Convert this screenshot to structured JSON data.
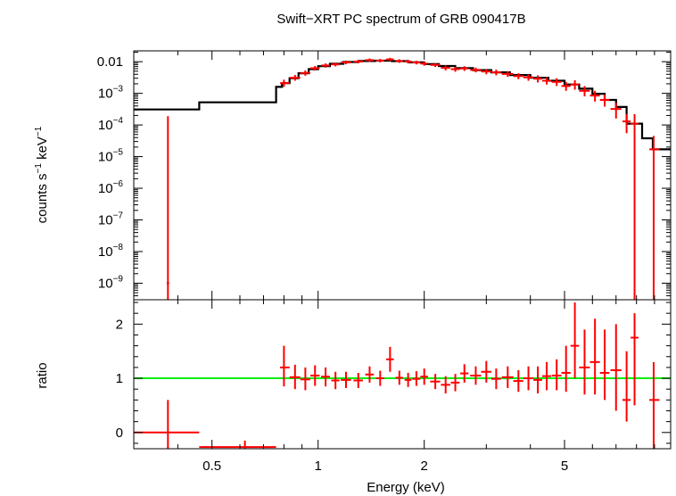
{
  "chart_data": {
    "type": "scatter",
    "title": "Swift−XRT PC spectrum of GRB 090417B",
    "xlabel": "Energy (keV)",
    "xscale": "log",
    "xlim": [
      0.3,
      10
    ],
    "x_ticks": [
      {
        "value": 0.5,
        "label": "0.5"
      },
      {
        "value": 1,
        "label": "1"
      },
      {
        "value": 2,
        "label": "2"
      },
      {
        "value": 5,
        "label": "5"
      }
    ],
    "top_panel": {
      "ylabel_parts": [
        "counts s",
        "−1",
        " keV",
        "−1"
      ],
      "yscale": "log",
      "ylim": [
        3e-10,
        0.022
      ],
      "y_ticks": [
        {
          "value": 0.01,
          "label": "0.01"
        },
        {
          "value": 0.001,
          "base": "10",
          "exp": "−3"
        },
        {
          "value": 0.0001,
          "base": "10",
          "exp": "−4"
        },
        {
          "value": 1e-05,
          "base": "10",
          "exp": "−5"
        },
        {
          "value": 1e-06,
          "base": "10",
          "exp": "−6"
        },
        {
          "value": 1e-07,
          "base": "10",
          "exp": "−7"
        },
        {
          "value": 1e-08,
          "base": "10",
          "exp": "−8"
        },
        {
          "value": 1e-09,
          "base": "10",
          "exp": "−9"
        }
      ],
      "model_color": "#000000",
      "data_color": "#ff0000",
      "model_steps": [
        [
          0.3,
          0.46,
          0.00031
        ],
        [
          0.46,
          0.76,
          0.00052
        ],
        [
          0.76,
          0.79,
          0.0016
        ],
        [
          0.79,
          0.83,
          0.0021
        ],
        [
          0.83,
          0.88,
          0.003
        ],
        [
          0.88,
          0.94,
          0.0043
        ],
        [
          0.94,
          1.0,
          0.0058
        ],
        [
          1.0,
          1.08,
          0.0072
        ],
        [
          1.08,
          1.18,
          0.0086
        ],
        [
          1.18,
          1.3,
          0.0098
        ],
        [
          1.3,
          1.45,
          0.0105
        ],
        [
          1.45,
          1.62,
          0.0108
        ],
        [
          1.62,
          1.8,
          0.0104
        ],
        [
          1.8,
          2.0,
          0.0095
        ],
        [
          2.0,
          2.2,
          0.0084
        ],
        [
          2.2,
          2.45,
          0.0073
        ],
        [
          2.45,
          2.75,
          0.0063
        ],
        [
          2.75,
          3.1,
          0.0054
        ],
        [
          3.1,
          3.5,
          0.0046
        ],
        [
          3.5,
          4.0,
          0.0038
        ],
        [
          4.0,
          4.5,
          0.0031
        ],
        [
          4.5,
          5.0,
          0.0025
        ],
        [
          5.0,
          5.5,
          0.0019
        ],
        [
          5.5,
          6.0,
          0.0014
        ],
        [
          6.0,
          6.5,
          0.00097
        ],
        [
          6.5,
          7.0,
          0.00062
        ],
        [
          7.0,
          7.5,
          0.00037
        ],
        [
          7.5,
          8.3,
          0.00011
        ],
        [
          8.3,
          8.9,
          3.8e-05
        ],
        [
          8.9,
          10.0,
          1.7e-05
        ]
      ],
      "points": [
        {
          "x": 0.375,
          "y": 1e-09,
          "xlo": 0.372,
          "xhi": 0.378,
          "ylo": 3e-10,
          "yhi": 0.00019
        },
        {
          "x": 0.8,
          "y": 0.0021,
          "xlo": 0.78,
          "xhi": 0.83,
          "ylo": 0.0016,
          "yhi": 0.0027
        },
        {
          "x": 0.86,
          "y": 0.0031,
          "xlo": 0.83,
          "xhi": 0.89,
          "ylo": 0.0025,
          "yhi": 0.0038
        },
        {
          "x": 0.92,
          "y": 0.0044,
          "xlo": 0.89,
          "xhi": 0.95,
          "ylo": 0.0036,
          "yhi": 0.0053
        },
        {
          "x": 0.98,
          "y": 0.0062,
          "xlo": 0.95,
          "xhi": 1.01,
          "ylo": 0.0052,
          "yhi": 0.0073
        },
        {
          "x": 1.05,
          "y": 0.0076,
          "xlo": 1.02,
          "xhi": 1.08,
          "ylo": 0.0065,
          "yhi": 0.0088
        },
        {
          "x": 1.12,
          "y": 0.0082,
          "xlo": 1.09,
          "xhi": 1.15,
          "ylo": 0.0071,
          "yhi": 0.0094
        },
        {
          "x": 1.2,
          "y": 0.0095,
          "xlo": 1.16,
          "xhi": 1.24,
          "ylo": 0.0083,
          "yhi": 0.0108
        },
        {
          "x": 1.3,
          "y": 0.0101,
          "xlo": 1.26,
          "xhi": 1.34,
          "ylo": 0.0089,
          "yhi": 0.0114
        },
        {
          "x": 1.4,
          "y": 0.0112,
          "xlo": 1.36,
          "xhi": 1.44,
          "ylo": 0.0099,
          "yhi": 0.0126
        },
        {
          "x": 1.5,
          "y": 0.0108,
          "xlo": 1.46,
          "xhi": 1.54,
          "ylo": 0.0095,
          "yhi": 0.0122
        },
        {
          "x": 1.6,
          "y": 0.0118,
          "xlo": 1.56,
          "xhi": 1.64,
          "ylo": 0.0104,
          "yhi": 0.0133
        },
        {
          "x": 1.7,
          "y": 0.0105,
          "xlo": 1.66,
          "xhi": 1.74,
          "ylo": 0.0092,
          "yhi": 0.0119
        },
        {
          "x": 1.8,
          "y": 0.0101,
          "xlo": 1.76,
          "xhi": 1.84,
          "ylo": 0.0088,
          "yhi": 0.0115
        },
        {
          "x": 1.9,
          "y": 0.0094,
          "xlo": 1.85,
          "xhi": 1.95,
          "ylo": 0.0082,
          "yhi": 0.0107
        },
        {
          "x": 2.0,
          "y": 0.0087,
          "xlo": 1.95,
          "xhi": 2.05,
          "ylo": 0.0075,
          "yhi": 0.01
        },
        {
          "x": 2.15,
          "y": 0.0079,
          "xlo": 2.08,
          "xhi": 2.22,
          "ylo": 0.0068,
          "yhi": 0.0091
        },
        {
          "x": 2.3,
          "y": 0.0064,
          "xlo": 2.23,
          "xhi": 2.37,
          "ylo": 0.0053,
          "yhi": 0.0076
        },
        {
          "x": 2.45,
          "y": 0.0058,
          "xlo": 2.38,
          "xhi": 2.52,
          "ylo": 0.0048,
          "yhi": 0.0069
        },
        {
          "x": 2.6,
          "y": 0.0061,
          "xlo": 2.53,
          "xhi": 2.67,
          "ylo": 0.0051,
          "yhi": 0.0072
        },
        {
          "x": 2.8,
          "y": 0.0055,
          "xlo": 2.7,
          "xhi": 2.9,
          "ylo": 0.0046,
          "yhi": 0.0065
        },
        {
          "x": 3.0,
          "y": 0.0049,
          "xlo": 2.9,
          "xhi": 3.1,
          "ylo": 0.004,
          "yhi": 0.0059
        },
        {
          "x": 3.2,
          "y": 0.0046,
          "xlo": 3.1,
          "xhi": 3.3,
          "ylo": 0.0037,
          "yhi": 0.0056
        },
        {
          "x": 3.45,
          "y": 0.0041,
          "xlo": 3.32,
          "xhi": 3.58,
          "ylo": 0.0033,
          "yhi": 0.005
        },
        {
          "x": 3.7,
          "y": 0.0035,
          "xlo": 3.58,
          "xhi": 3.82,
          "ylo": 0.0028,
          "yhi": 0.0043
        },
        {
          "x": 3.95,
          "y": 0.0032,
          "xlo": 3.82,
          "xhi": 4.08,
          "ylo": 0.0025,
          "yhi": 0.004
        },
        {
          "x": 4.2,
          "y": 0.0029,
          "xlo": 4.08,
          "xhi": 4.32,
          "ylo": 0.0022,
          "yhi": 0.0037
        },
        {
          "x": 4.45,
          "y": 0.0025,
          "xlo": 4.32,
          "xhi": 4.58,
          "ylo": 0.0019,
          "yhi": 0.0032
        },
        {
          "x": 4.75,
          "y": 0.0023,
          "xlo": 4.6,
          "xhi": 4.9,
          "ylo": 0.0017,
          "yhi": 0.003
        },
        {
          "x": 5.05,
          "y": 0.0017,
          "xlo": 4.9,
          "xhi": 5.2,
          "ylo": 0.0012,
          "yhi": 0.0023
        },
        {
          "x": 5.35,
          "y": 0.0019,
          "xlo": 5.2,
          "xhi": 5.5,
          "ylo": 0.0013,
          "yhi": 0.0026
        },
        {
          "x": 5.7,
          "y": 0.0012,
          "xlo": 5.5,
          "xhi": 5.9,
          "ylo": 0.0008,
          "yhi": 0.0017
        },
        {
          "x": 6.1,
          "y": 0.00085,
          "xlo": 5.9,
          "xhi": 6.3,
          "ylo": 0.00055,
          "yhi": 0.0012
        },
        {
          "x": 6.5,
          "y": 0.00062,
          "xlo": 6.3,
          "xhi": 6.7,
          "ylo": 0.00038,
          "yhi": 0.0009
        },
        {
          "x": 7.0,
          "y": 0.00032,
          "xlo": 6.75,
          "xhi": 7.25,
          "ylo": 0.00016,
          "yhi": 0.0005
        },
        {
          "x": 7.5,
          "y": 0.00013,
          "xlo": 7.3,
          "xhi": 7.7,
          "ylo": 5.5e-05,
          "yhi": 0.00022
        },
        {
          "x": 7.9,
          "y": 0.00011,
          "xlo": 7.7,
          "xhi": 8.1,
          "ylo": 3e-10,
          "yhi": 0.00022
        },
        {
          "x": 8.95,
          "y": 1.7e-05,
          "xlo": 8.7,
          "xhi": 9.3,
          "ylo": 3e-10,
          "yhi": 4.5e-05
        }
      ]
    },
    "bottom_panel": {
      "ylabel": "ratio",
      "ylim": [
        -0.3,
        2.45
      ],
      "y_ticks": [
        {
          "value": 0,
          "label": "0"
        },
        {
          "value": 1,
          "label": "1"
        },
        {
          "value": 2,
          "label": "2"
        }
      ],
      "reference_line": {
        "y": 1,
        "color": "#00ee00"
      },
      "data_color": "#ff0000",
      "points": [
        {
          "x": 0.375,
          "y": 0.0,
          "xlo": 0.3,
          "xhi": 0.46,
          "ylo": -0.3,
          "yhi": 0.6
        },
        {
          "x": 0.62,
          "y": -0.27,
          "xlo": 0.46,
          "xhi": 0.76,
          "ylo": -0.3,
          "yhi": -0.15
        },
        {
          "x": 0.8,
          "y": 1.2,
          "xlo": 0.78,
          "xhi": 0.83,
          "ylo": 0.85,
          "yhi": 1.6
        },
        {
          "x": 0.86,
          "y": 1.02,
          "xlo": 0.83,
          "xhi": 0.89,
          "ylo": 0.8,
          "yhi": 1.25
        },
        {
          "x": 0.92,
          "y": 0.98,
          "xlo": 0.89,
          "xhi": 0.95,
          "ylo": 0.78,
          "yhi": 1.2
        },
        {
          "x": 0.98,
          "y": 1.05,
          "xlo": 0.95,
          "xhi": 1.01,
          "ylo": 0.86,
          "yhi": 1.24
        },
        {
          "x": 1.05,
          "y": 1.03,
          "xlo": 1.02,
          "xhi": 1.08,
          "ylo": 0.85,
          "yhi": 1.2
        },
        {
          "x": 1.12,
          "y": 0.96,
          "xlo": 1.09,
          "xhi": 1.15,
          "ylo": 0.8,
          "yhi": 1.12
        },
        {
          "x": 1.2,
          "y": 0.97,
          "xlo": 1.16,
          "xhi": 1.24,
          "ylo": 0.82,
          "yhi": 1.12
        },
        {
          "x": 1.3,
          "y": 0.96,
          "xlo": 1.26,
          "xhi": 1.34,
          "ylo": 0.82,
          "yhi": 1.1
        },
        {
          "x": 1.4,
          "y": 1.07,
          "xlo": 1.36,
          "xhi": 1.44,
          "ylo": 0.92,
          "yhi": 1.22
        },
        {
          "x": 1.5,
          "y": 1.0,
          "xlo": 1.46,
          "xhi": 1.54,
          "ylo": 0.86,
          "yhi": 1.14
        },
        {
          "x": 1.6,
          "y": 1.35,
          "xlo": 1.56,
          "xhi": 1.64,
          "ylo": 1.12,
          "yhi": 1.58
        },
        {
          "x": 1.7,
          "y": 1.01,
          "xlo": 1.66,
          "xhi": 1.74,
          "ylo": 0.88,
          "yhi": 1.14
        },
        {
          "x": 1.8,
          "y": 0.97,
          "xlo": 1.76,
          "xhi": 1.84,
          "ylo": 0.84,
          "yhi": 1.1
        },
        {
          "x": 1.9,
          "y": 0.99,
          "xlo": 1.85,
          "xhi": 1.95,
          "ylo": 0.86,
          "yhi": 1.13
        },
        {
          "x": 2.0,
          "y": 1.03,
          "xlo": 1.95,
          "xhi": 2.05,
          "ylo": 0.88,
          "yhi": 1.18
        },
        {
          "x": 2.15,
          "y": 0.94,
          "xlo": 2.08,
          "xhi": 2.22,
          "ylo": 0.8,
          "yhi": 1.08
        },
        {
          "x": 2.3,
          "y": 0.88,
          "xlo": 2.23,
          "xhi": 2.37,
          "ylo": 0.72,
          "yhi": 1.04
        },
        {
          "x": 2.45,
          "y": 0.92,
          "xlo": 2.38,
          "xhi": 2.52,
          "ylo": 0.76,
          "yhi": 1.08
        },
        {
          "x": 2.6,
          "y": 1.09,
          "xlo": 2.53,
          "xhi": 2.67,
          "ylo": 0.92,
          "yhi": 1.26
        },
        {
          "x": 2.8,
          "y": 1.05,
          "xlo": 2.7,
          "xhi": 2.9,
          "ylo": 0.88,
          "yhi": 1.22
        },
        {
          "x": 3.0,
          "y": 1.12,
          "xlo": 2.9,
          "xhi": 3.1,
          "ylo": 0.92,
          "yhi": 1.32
        },
        {
          "x": 3.2,
          "y": 0.99,
          "xlo": 3.1,
          "xhi": 3.3,
          "ylo": 0.8,
          "yhi": 1.18
        },
        {
          "x": 3.45,
          "y": 1.02,
          "xlo": 3.32,
          "xhi": 3.58,
          "ylo": 0.82,
          "yhi": 1.22
        },
        {
          "x": 3.7,
          "y": 0.95,
          "xlo": 3.58,
          "xhi": 3.82,
          "ylo": 0.75,
          "yhi": 1.15
        },
        {
          "x": 3.95,
          "y": 1.0,
          "xlo": 3.82,
          "xhi": 4.08,
          "ylo": 0.78,
          "yhi": 1.22
        },
        {
          "x": 4.2,
          "y": 0.97,
          "xlo": 4.08,
          "xhi": 4.32,
          "ylo": 0.72,
          "yhi": 1.22
        },
        {
          "x": 4.45,
          "y": 1.04,
          "xlo": 4.32,
          "xhi": 4.58,
          "ylo": 0.78,
          "yhi": 1.3
        },
        {
          "x": 4.75,
          "y": 1.05,
          "xlo": 4.6,
          "xhi": 4.9,
          "ylo": 0.78,
          "yhi": 1.35
        },
        {
          "x": 5.05,
          "y": 1.1,
          "xlo": 4.9,
          "xhi": 5.2,
          "ylo": 0.75,
          "yhi": 1.6
        },
        {
          "x": 5.35,
          "y": 1.6,
          "xlo": 5.2,
          "xhi": 5.5,
          "ylo": 1.0,
          "yhi": 2.4
        },
        {
          "x": 5.7,
          "y": 1.2,
          "xlo": 5.5,
          "xhi": 5.9,
          "ylo": 0.7,
          "yhi": 1.9
        },
        {
          "x": 6.1,
          "y": 1.3,
          "xlo": 5.9,
          "xhi": 6.3,
          "ylo": 0.7,
          "yhi": 2.1
        },
        {
          "x": 6.5,
          "y": 1.1,
          "xlo": 6.3,
          "xhi": 6.7,
          "ylo": 0.6,
          "yhi": 1.9
        },
        {
          "x": 7.0,
          "y": 1.15,
          "xlo": 6.75,
          "xhi": 7.25,
          "ylo": 0.4,
          "yhi": 2.0
        },
        {
          "x": 7.5,
          "y": 0.6,
          "xlo": 7.3,
          "xhi": 7.7,
          "ylo": 0.2,
          "yhi": 1.5
        },
        {
          "x": 7.9,
          "y": 1.75,
          "xlo": 7.7,
          "xhi": 8.1,
          "ylo": 0.5,
          "yhi": 2.2
        },
        {
          "x": 8.95,
          "y": 0.6,
          "xlo": 8.7,
          "xhi": 9.3,
          "ylo": -0.3,
          "yhi": 1.3
        }
      ]
    }
  }
}
